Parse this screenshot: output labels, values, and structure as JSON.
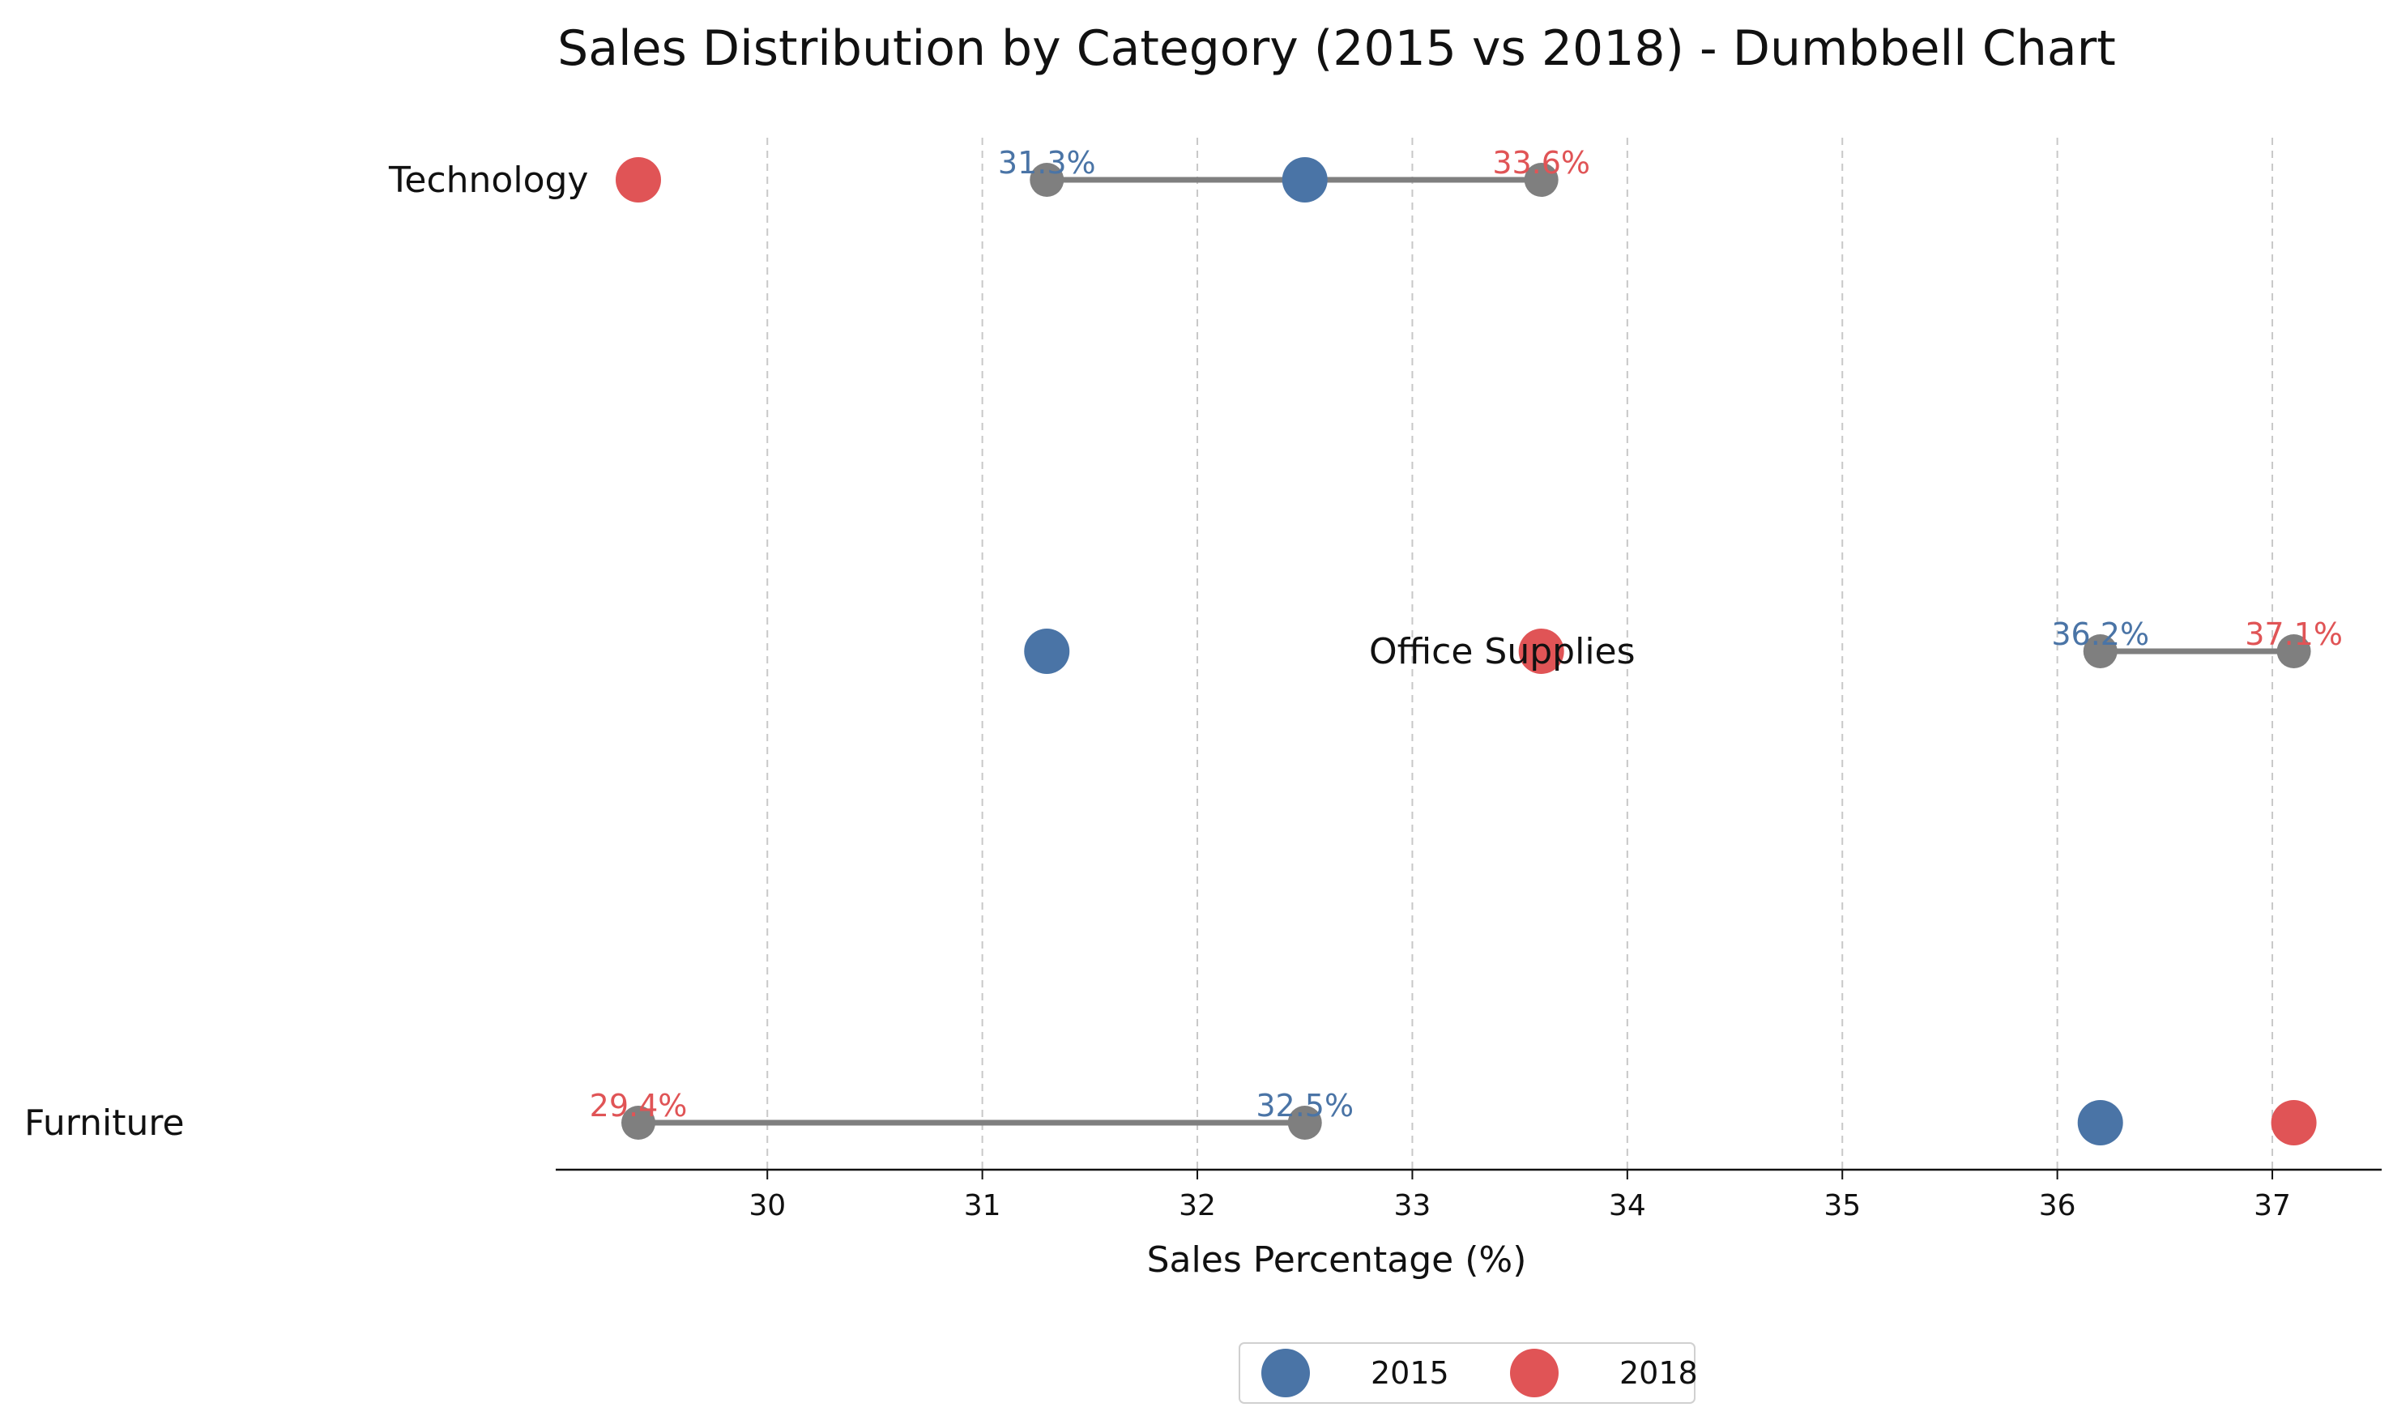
{
  "chart_data": {
    "type": "dumbbell",
    "title": "Sales Distribution by Category (2015 vs 2018) - Dumbbell Chart",
    "xlabel": "Sales Percentage (%)",
    "ylabel": "",
    "xlim": [
      29.0,
      37.5
    ],
    "xticks": [
      30,
      31,
      32,
      33,
      34,
      35,
      36,
      37
    ],
    "grid": "x-dashed",
    "legend": {
      "placement": "bottom-center",
      "columns": 2
    },
    "colors": {
      "2015": "#4a74a6",
      "2018": "#e05456",
      "connector": "#7f7f7f",
      "grid": "#c8c8c8"
    },
    "categories": [
      "Technology",
      "Office Supplies",
      "Furniture"
    ],
    "series": [
      {
        "name": "2015",
        "color": "#4a74a6",
        "values": [
          32.5,
          31.3,
          36.2
        ]
      },
      {
        "name": "2018",
        "color": "#e05456",
        "values": [
          29.4,
          33.6,
          37.1
        ]
      }
    ],
    "connector_segments": [
      {
        "x_start": 31.3,
        "x_end": 33.6,
        "label_start": "31.3%",
        "label_end": "33.6%",
        "label_start_series": "2015",
        "label_end_series": "2018"
      },
      {
        "x_start": 36.2,
        "x_end": 37.1,
        "label_start": "36.2%",
        "label_end": "37.1%",
        "label_start_series": "2015",
        "label_end_series": "2018"
      },
      {
        "x_start": 29.4,
        "x_end": 32.5,
        "label_start": "29.4%",
        "label_end": "32.5%",
        "label_start_series": "2018",
        "label_end_series": "2015"
      }
    ]
  }
}
